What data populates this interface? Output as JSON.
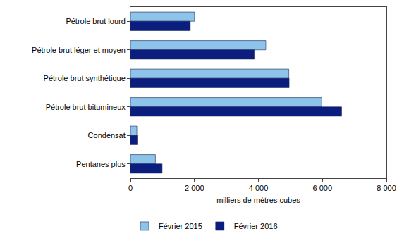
{
  "chart_data": {
    "type": "bar",
    "orientation": "horizontal",
    "categories": [
      "Pétrole brut lourd",
      "Pétrole brut léger et moyen",
      "Pétrole brut synthétique",
      "Pétrole brut bitumineux",
      "Condensat",
      "Pentanes plus"
    ],
    "series": [
      {
        "name": "Février 2015",
        "color": "#8ec3ea",
        "values": [
          2000,
          4230,
          4950,
          5980,
          200,
          780
        ]
      },
      {
        "name": "Février 2016",
        "color": "#0b1d7f",
        "values": [
          1870,
          3870,
          4960,
          6600,
          210,
          990
        ]
      }
    ],
    "x_label": "milliers de mètres cubes",
    "xlim": [
      0,
      8000
    ],
    "xticks": [
      0,
      {
        "value": 2000,
        "label": "2 000"
      },
      {
        "value": 4000,
        "label": "4 000"
      },
      {
        "value": 6000,
        "label": "6 000"
      },
      {
        "value": 8000,
        "label": "8 000"
      }
    ],
    "grid": false,
    "legend": "bottom"
  }
}
